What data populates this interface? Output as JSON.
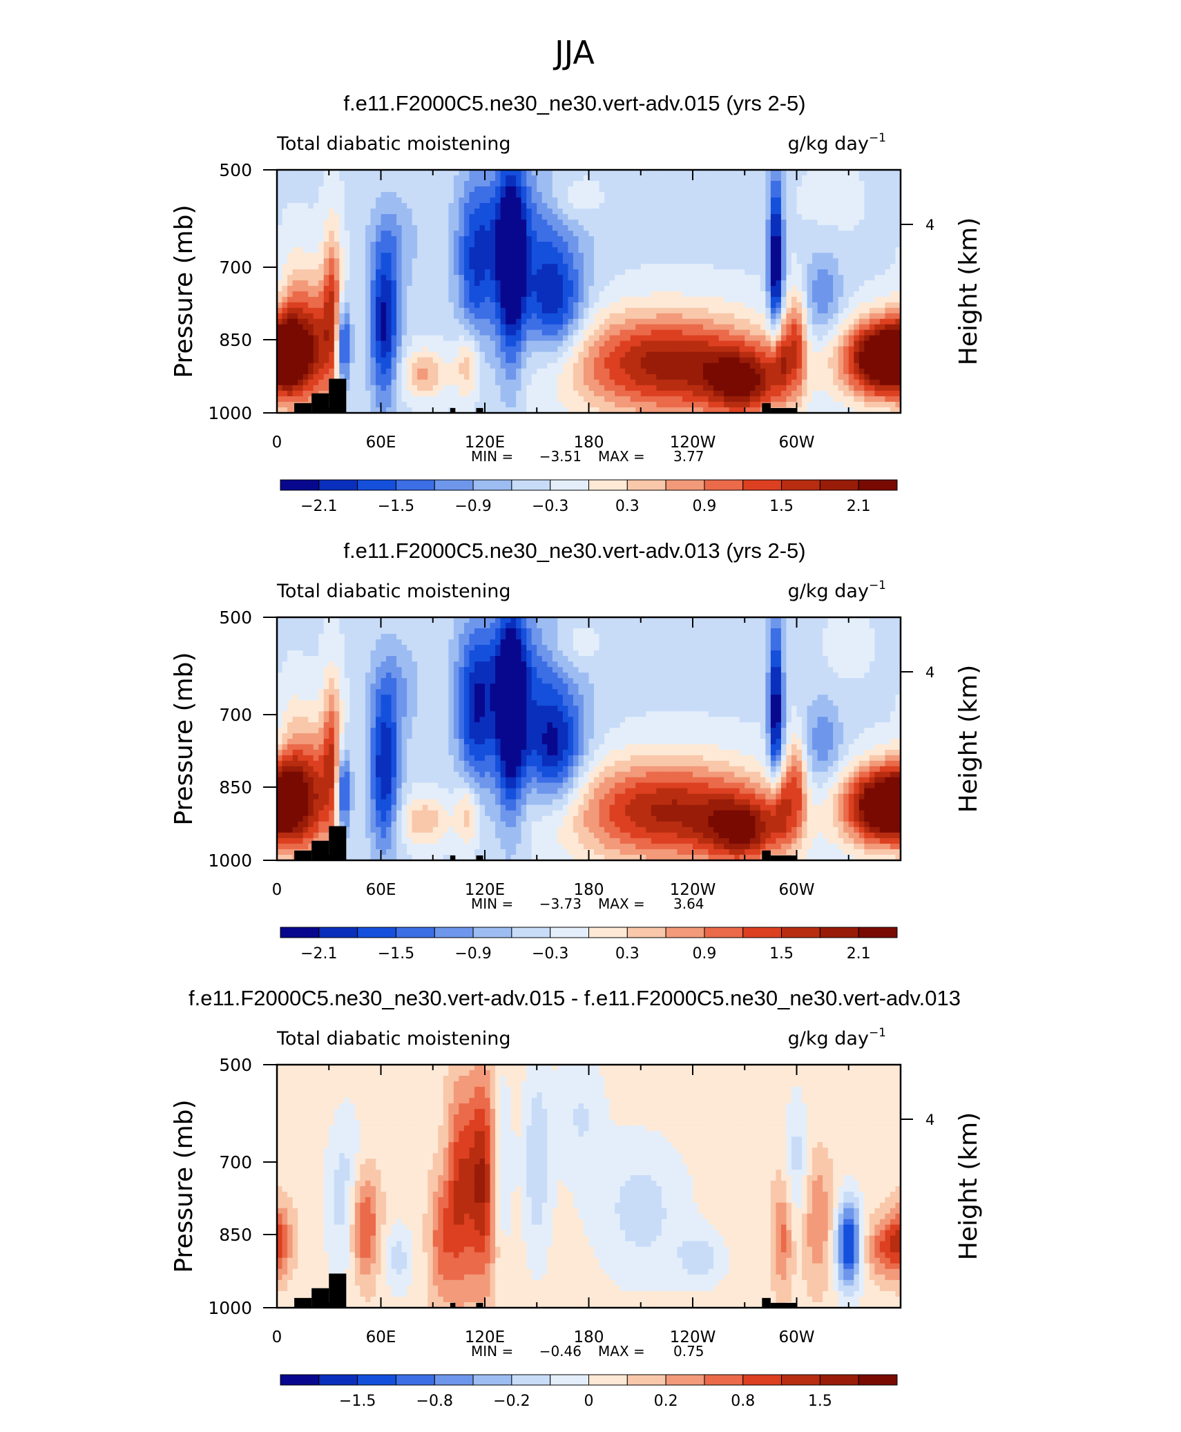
{
  "figure_title": "JJA",
  "chart_data": [
    {
      "type": "heatmap",
      "title": "f.e11.F2000C5.ne30_ne30.vert-adv.015 (yrs 2-5)",
      "variable": "Total diabatic moistening",
      "units": "g/kg day",
      "units_exp": "−1",
      "ylabel": "Pressure (mb)",
      "ylabel_right": "Height (km)",
      "y_ticks": [
        "500",
        "700",
        "850",
        "1000"
      ],
      "right_ticks": [
        "4"
      ],
      "x_ticks": [
        "0",
        "60E",
        "120E",
        "180",
        "120W",
        "60W"
      ],
      "min_label": "MIN =",
      "min": "−3.51",
      "max_label": "MAX =",
      "max": "3.77",
      "colorbar_labels": [
        "−2.1",
        "−1.5",
        "−0.9",
        "−0.3",
        "0.3",
        "0.9",
        "1.5",
        "2.1"
      ],
      "colorbar_colors": [
        "#08088e",
        "#0a2fbd",
        "#1450dc",
        "#3c6ee6",
        "#6e96eb",
        "#9dbdf2",
        "#c8dcf8",
        "#e4eefa",
        "#fde9d6",
        "#f9c7aa",
        "#f29a7a",
        "#ea6a4a",
        "#dc4020",
        "#b82d10",
        "#981c08",
        "#780a02"
      ],
      "blobs": [
        {
          "lon": 0,
          "p": 880,
          "w": 12,
          "h": 120,
          "v": 2.0
        },
        {
          "lon": 10,
          "p": 850,
          "w": 6,
          "h": 220,
          "v": 1.4
        },
        {
          "lon": 22,
          "p": 860,
          "w": 6,
          "h": 200,
          "v": 1.6
        },
        {
          "lon": 32,
          "p": 800,
          "w": 4,
          "h": 240,
          "v": 1.8
        },
        {
          "lon": 38,
          "p": 860,
          "w": 3,
          "h": 120,
          "v": -1.8
        },
        {
          "lon": 62,
          "p": 820,
          "w": 6,
          "h": 230,
          "v": -1.8
        },
        {
          "lon": 68,
          "p": 650,
          "w": 10,
          "h": 150,
          "v": -0.5
        },
        {
          "lon": 85,
          "p": 920,
          "w": 10,
          "h": 70,
          "v": 1.0
        },
        {
          "lon": 110,
          "p": 900,
          "w": 5,
          "h": 100,
          "v": 1.0
        },
        {
          "lon": 115,
          "p": 700,
          "w": 8,
          "h": 260,
          "v": -1.3
        },
        {
          "lon": 135,
          "p": 700,
          "w": 6,
          "h": 300,
          "v": -2.2
        },
        {
          "lon": 160,
          "p": 780,
          "w": 12,
          "h": 160,
          "v": -1.6
        },
        {
          "lon": 145,
          "p": 620,
          "w": 22,
          "h": 200,
          "v": -0.9
        },
        {
          "lon": 170,
          "p": 560,
          "w": 12,
          "h": 80,
          "v": 0.5
        },
        {
          "lon": 225,
          "p": 900,
          "w": 40,
          "h": 150,
          "v": 2.3
        },
        {
          "lon": 270,
          "p": 940,
          "w": 16,
          "h": 100,
          "v": 1.8
        },
        {
          "lon": 288,
          "p": 700,
          "w": 3,
          "h": 280,
          "v": -2.2
        },
        {
          "lon": 290,
          "p": 880,
          "w": 4,
          "h": 120,
          "v": 1.6
        },
        {
          "lon": 300,
          "p": 850,
          "w": 4,
          "h": 150,
          "v": 1.4
        },
        {
          "lon": 315,
          "p": 760,
          "w": 8,
          "h": 130,
          "v": -0.8
        },
        {
          "lon": 345,
          "p": 890,
          "w": 15,
          "h": 110,
          "v": 2.5
        },
        {
          "lon": 320,
          "p": 560,
          "w": 12,
          "h": 100,
          "v": 0.2
        }
      ],
      "base": -0.35,
      "land": [
        [
          10,
          20,
          980
        ],
        [
          20,
          30,
          960
        ],
        [
          30,
          40,
          930
        ],
        [
          100,
          103,
          990
        ],
        [
          115,
          119,
          990
        ],
        [
          280,
          285,
          980
        ],
        [
          285,
          300,
          990
        ]
      ]
    },
    {
      "type": "heatmap",
      "title": "f.e11.F2000C5.ne30_ne30.vert-adv.013 (yrs 2-5)",
      "variable": "Total diabatic moistening",
      "units": "g/kg day",
      "units_exp": "−1",
      "ylabel": "Pressure (mb)",
      "ylabel_right": "Height (km)",
      "y_ticks": [
        "500",
        "700",
        "850",
        "1000"
      ],
      "right_ticks": [
        "4"
      ],
      "x_ticks": [
        "0",
        "60E",
        "120E",
        "180",
        "120W",
        "60W"
      ],
      "min_label": "MIN =",
      "min": "−3.73",
      "max_label": "MAX =",
      "max": "3.64",
      "colorbar_labels": [
        "−2.1",
        "−1.5",
        "−0.9",
        "−0.3",
        "0.3",
        "0.9",
        "1.5",
        "2.1"
      ],
      "colorbar_colors": [
        "#08088e",
        "#0a2fbd",
        "#1450dc",
        "#3c6ee6",
        "#6e96eb",
        "#9dbdf2",
        "#c8dcf8",
        "#e4eefa",
        "#fde9d6",
        "#f9c7aa",
        "#f29a7a",
        "#ea6a4a",
        "#dc4020",
        "#b82d10",
        "#981c08",
        "#780a02"
      ],
      "blobs": [
        {
          "lon": 0,
          "p": 880,
          "w": 12,
          "h": 120,
          "v": 2.0
        },
        {
          "lon": 10,
          "p": 850,
          "w": 6,
          "h": 220,
          "v": 1.3
        },
        {
          "lon": 22,
          "p": 860,
          "w": 6,
          "h": 200,
          "v": 1.5
        },
        {
          "lon": 32,
          "p": 800,
          "w": 4,
          "h": 240,
          "v": 1.7
        },
        {
          "lon": 38,
          "p": 860,
          "w": 3,
          "h": 120,
          "v": -1.8
        },
        {
          "lon": 62,
          "p": 820,
          "w": 6,
          "h": 230,
          "v": -1.7
        },
        {
          "lon": 68,
          "p": 650,
          "w": 10,
          "h": 150,
          "v": -0.6
        },
        {
          "lon": 85,
          "p": 920,
          "w": 10,
          "h": 70,
          "v": 0.9
        },
        {
          "lon": 110,
          "p": 900,
          "w": 5,
          "h": 100,
          "v": 1.0
        },
        {
          "lon": 115,
          "p": 700,
          "w": 8,
          "h": 260,
          "v": -1.5
        },
        {
          "lon": 135,
          "p": 700,
          "w": 6,
          "h": 300,
          "v": -2.3
        },
        {
          "lon": 160,
          "p": 780,
          "w": 12,
          "h": 160,
          "v": -1.7
        },
        {
          "lon": 145,
          "p": 620,
          "w": 22,
          "h": 200,
          "v": -1.0
        },
        {
          "lon": 170,
          "p": 560,
          "w": 12,
          "h": 80,
          "v": 0.5
        },
        {
          "lon": 225,
          "p": 900,
          "w": 40,
          "h": 150,
          "v": 2.2
        },
        {
          "lon": 270,
          "p": 940,
          "w": 16,
          "h": 100,
          "v": 1.8
        },
        {
          "lon": 288,
          "p": 700,
          "w": 3,
          "h": 280,
          "v": -2.1
        },
        {
          "lon": 290,
          "p": 880,
          "w": 4,
          "h": 120,
          "v": 1.5
        },
        {
          "lon": 300,
          "p": 850,
          "w": 4,
          "h": 150,
          "v": 1.3
        },
        {
          "lon": 315,
          "p": 760,
          "w": 8,
          "h": 130,
          "v": -0.8
        },
        {
          "lon": 345,
          "p": 890,
          "w": 15,
          "h": 110,
          "v": 2.4
        },
        {
          "lon": 330,
          "p": 560,
          "w": 8,
          "h": 80,
          "v": 0.3
        }
      ],
      "base": -0.35,
      "land": [
        [
          10,
          20,
          980
        ],
        [
          20,
          30,
          960
        ],
        [
          30,
          40,
          930
        ],
        [
          100,
          103,
          990
        ],
        [
          115,
          119,
          990
        ],
        [
          280,
          285,
          980
        ],
        [
          285,
          300,
          990
        ]
      ]
    },
    {
      "type": "heatmap",
      "title": "f.e11.F2000C5.ne30_ne30.vert-adv.015 - f.e11.F2000C5.ne30_ne30.vert-adv.013",
      "variable": "Total diabatic moistening",
      "units": "g/kg day",
      "units_exp": "−1",
      "ylabel": "Pressure (mb)",
      "ylabel_right": "Height (km)",
      "y_ticks": [
        "500",
        "700",
        "850",
        "1000"
      ],
      "right_ticks": [
        "4"
      ],
      "x_ticks": [
        "0",
        "60E",
        "120E",
        "180",
        "120W",
        "60W"
      ],
      "min_label": "MIN =",
      "min": "−0.46",
      "max_label": "MAX =",
      "max": "0.75",
      "colorbar_labels": [
        "−1.5",
        "−0.8",
        "−0.2",
        "0",
        "0.2",
        "0.8",
        "1.5"
      ],
      "colorbar_colors": [
        "#08088e",
        "#0a2fbd",
        "#1450dc",
        "#3c6ee6",
        "#6e96eb",
        "#9dbdf2",
        "#c8dcf8",
        "#e4eefa",
        "#fde9d6",
        "#f9c7aa",
        "#f29a7a",
        "#ea6a4a",
        "#dc4020",
        "#b82d10",
        "#981c08",
        "#780a02"
      ],
      "blobs": [
        {
          "lon": 0,
          "p": 860,
          "w": 6,
          "h": 100,
          "v": 0.18
        },
        {
          "lon": 40,
          "p": 780,
          "w": 8,
          "h": 250,
          "v": -0.12
        },
        {
          "lon": 50,
          "p": 830,
          "w": 6,
          "h": 160,
          "v": 0.22
        },
        {
          "lon": 70,
          "p": 900,
          "w": 6,
          "h": 100,
          "v": -0.1
        },
        {
          "lon": 95,
          "p": 860,
          "w": 5,
          "h": 180,
          "v": 0.15
        },
        {
          "lon": 105,
          "p": 760,
          "w": 5,
          "h": 300,
          "v": 0.2
        },
        {
          "lon": 118,
          "p": 740,
          "w": 6,
          "h": 300,
          "v": 0.28
        },
        {
          "lon": 130,
          "p": 700,
          "w": 4,
          "h": 260,
          "v": -0.1
        },
        {
          "lon": 150,
          "p": 700,
          "w": 6,
          "h": 300,
          "v": -0.12
        },
        {
          "lon": 175,
          "p": 600,
          "w": 10,
          "h": 200,
          "v": -0.08
        },
        {
          "lon": 210,
          "p": 800,
          "w": 20,
          "h": 220,
          "v": -0.1
        },
        {
          "lon": 245,
          "p": 900,
          "w": 10,
          "h": 80,
          "v": -0.1
        },
        {
          "lon": 292,
          "p": 850,
          "w": 4,
          "h": 160,
          "v": 0.14
        },
        {
          "lon": 300,
          "p": 700,
          "w": 5,
          "h": 200,
          "v": -0.1
        },
        {
          "lon": 312,
          "p": 820,
          "w": 6,
          "h": 180,
          "v": 0.12
        },
        {
          "lon": 330,
          "p": 870,
          "w": 5,
          "h": 130,
          "v": -0.35
        },
        {
          "lon": 350,
          "p": 880,
          "w": 8,
          "h": 80,
          "v": 0.14
        }
      ],
      "base": 0.03,
      "land": [
        [
          10,
          20,
          980
        ],
        [
          20,
          30,
          960
        ],
        [
          30,
          40,
          930
        ],
        [
          100,
          103,
          990
        ],
        [
          115,
          119,
          990
        ],
        [
          280,
          285,
          980
        ],
        [
          285,
          300,
          990
        ]
      ]
    }
  ]
}
